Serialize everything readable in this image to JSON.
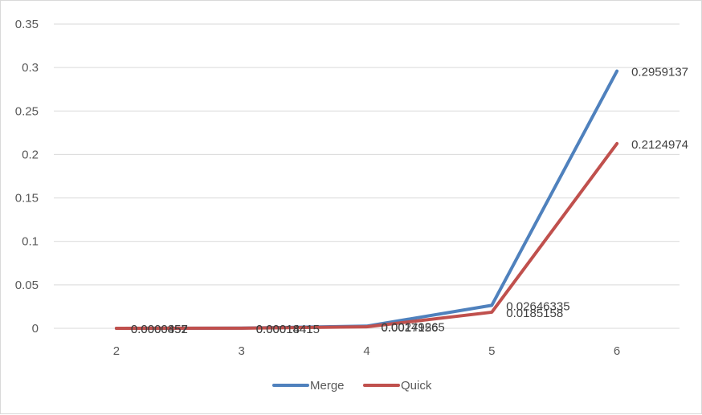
{
  "chart_data": {
    "type": "line",
    "title": "",
    "xlabel": "",
    "ylabel": "",
    "categories": [
      "2",
      "3",
      "4",
      "5",
      "6"
    ],
    "ylim": [
      0,
      0.35
    ],
    "yticks": [
      0,
      0.05,
      0.1,
      0.15,
      0.2,
      0.25,
      0.3,
      0.35
    ],
    "ytick_labels": [
      "0",
      "0.05",
      "0.1",
      "0.15",
      "0.2",
      "0.25",
      "0.3",
      "0.35"
    ],
    "grid": "horizontal",
    "legend": "bottom",
    "series": [
      {
        "name": "Merge",
        "color": "#4f81bd",
        "values": [
          4.52e-05,
          0.00018415,
          0.00249265,
          0.02646335,
          0.2959137
        ],
        "labels": [
          "0.0000452",
          "0.00018415",
          "0.00249265",
          "0.02646335",
          "0.2959137"
        ]
      },
      {
        "name": "Quick",
        "color": "#c0504d",
        "values": [
          3.57e-05,
          0.0001441,
          0.0017156,
          0.0185158,
          0.2124974
        ],
        "labels": [
          "0.0000357",
          "0.0001441",
          "0.0017156",
          "0.0185158",
          "0.2124974"
        ]
      }
    ]
  }
}
